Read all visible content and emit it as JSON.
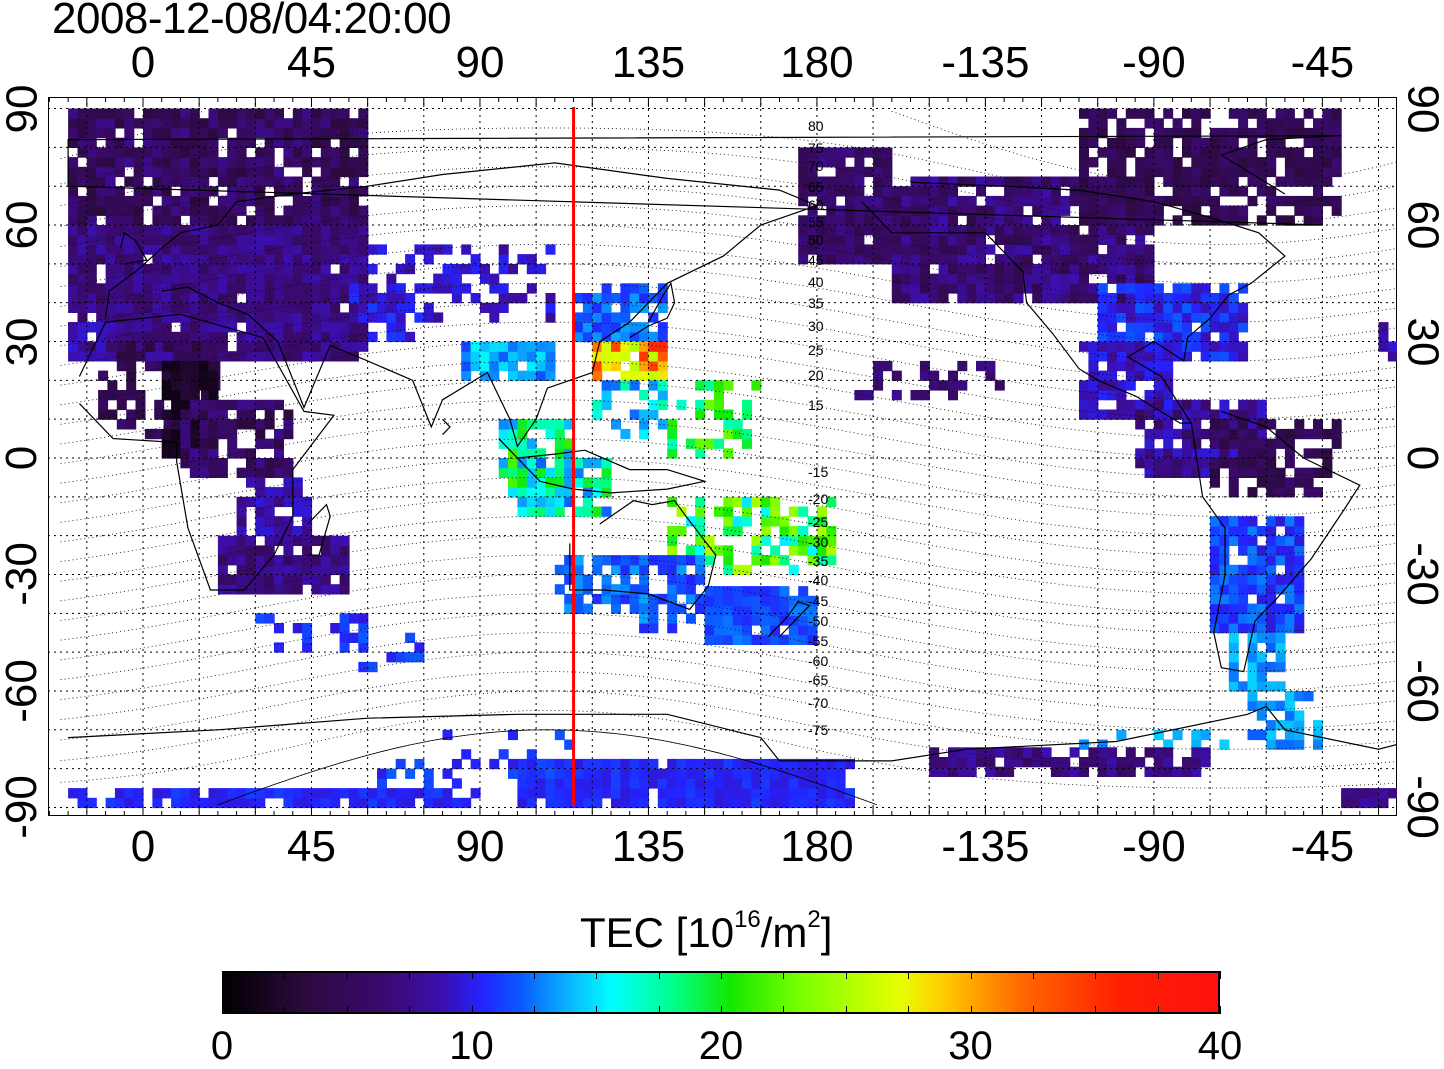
{
  "title": "2008-12-08/04:20:00",
  "longitude_ticks": [
    "0",
    "45",
    "90",
    "135",
    "180",
    "-135",
    "-90",
    "-45"
  ],
  "latitude_ticks": [
    "90",
    "60",
    "30",
    "0",
    "-30",
    "-60",
    "-90"
  ],
  "contour_labels": [
    "80",
    "75",
    "70",
    "65",
    "60",
    "55",
    "50",
    "45",
    "40",
    "35",
    "30",
    "25",
    "20",
    "15",
    "-15",
    "-20",
    "-25",
    "-30",
    "-35",
    "-40",
    "-45",
    "-50",
    "-55",
    "-60",
    "-65",
    "-70",
    "-75"
  ],
  "meridian_marker_longitude": 115,
  "colorbar": {
    "title": "TEC  [10",
    "exponent": "16",
    "unit": "/m",
    "unit_exponent": "2",
    "ticks": [
      "0",
      "10",
      "20",
      "30",
      "40"
    ],
    "range": [
      0,
      40
    ]
  },
  "colors": {
    "marker_line": "#ff0000",
    "low_tec": "#3a0a6e",
    "mid_tec": "#0a5cff",
    "high_tec": "#ff2000"
  }
}
